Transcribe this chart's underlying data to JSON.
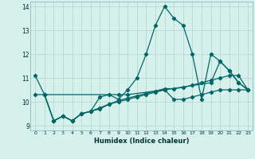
{
  "xlabel": "Humidex (Indice chaleur)",
  "bg_color": "#d6f0ec",
  "grid_color": "#b8d8d4",
  "line_color": "#006666",
  "xlim": [
    -0.5,
    23.5
  ],
  "ylim": [
    8.8,
    14.2
  ],
  "yticks": [
    9,
    10,
    11,
    12,
    13,
    14
  ],
  "xticks": [
    0,
    1,
    2,
    3,
    4,
    5,
    6,
    7,
    8,
    9,
    10,
    11,
    12,
    13,
    14,
    15,
    16,
    17,
    18,
    19,
    20,
    21,
    22,
    23
  ],
  "line1_x": [
    0,
    1,
    2,
    3,
    4,
    5,
    6,
    7,
    8,
    9,
    10,
    11,
    12,
    13,
    14,
    15,
    16,
    17,
    18,
    19,
    20,
    21,
    22,
    23
  ],
  "line1_y": [
    11.1,
    10.3,
    9.2,
    9.4,
    9.2,
    9.5,
    9.6,
    10.2,
    10.3,
    10.1,
    10.5,
    11.0,
    12.0,
    13.2,
    14.0,
    13.5,
    13.2,
    12.0,
    10.1,
    12.0,
    11.7,
    11.3,
    10.8,
    10.5
  ],
  "line2_x": [
    1,
    2,
    3,
    4,
    5,
    6,
    7,
    8,
    9,
    10,
    11,
    12,
    13,
    14,
    15,
    16,
    17,
    18,
    19,
    20,
    21,
    22,
    23
  ],
  "line2_y": [
    10.3,
    9.2,
    9.4,
    9.2,
    9.5,
    9.6,
    9.7,
    9.9,
    10.05,
    10.15,
    10.25,
    10.35,
    10.45,
    10.55,
    10.55,
    10.6,
    10.7,
    10.8,
    10.9,
    11.0,
    11.1,
    11.1,
    10.5
  ],
  "line3_x": [
    1,
    2,
    3,
    4,
    5,
    6,
    7,
    8,
    9,
    10,
    11,
    12,
    13,
    14,
    15,
    16,
    17,
    18,
    19,
    20,
    21,
    22,
    23
  ],
  "line3_y": [
    10.3,
    9.2,
    9.4,
    9.2,
    9.5,
    9.6,
    9.75,
    9.9,
    10.0,
    10.1,
    10.2,
    10.3,
    10.4,
    10.5,
    10.1,
    10.1,
    10.2,
    10.3,
    10.4,
    10.5,
    10.5,
    10.5,
    10.5
  ],
  "line4_x": [
    0,
    1,
    9,
    10,
    14,
    19,
    20,
    21,
    22,
    23
  ],
  "line4_y": [
    10.3,
    10.3,
    10.3,
    10.3,
    10.5,
    10.8,
    11.7,
    11.3,
    10.8,
    10.5
  ]
}
